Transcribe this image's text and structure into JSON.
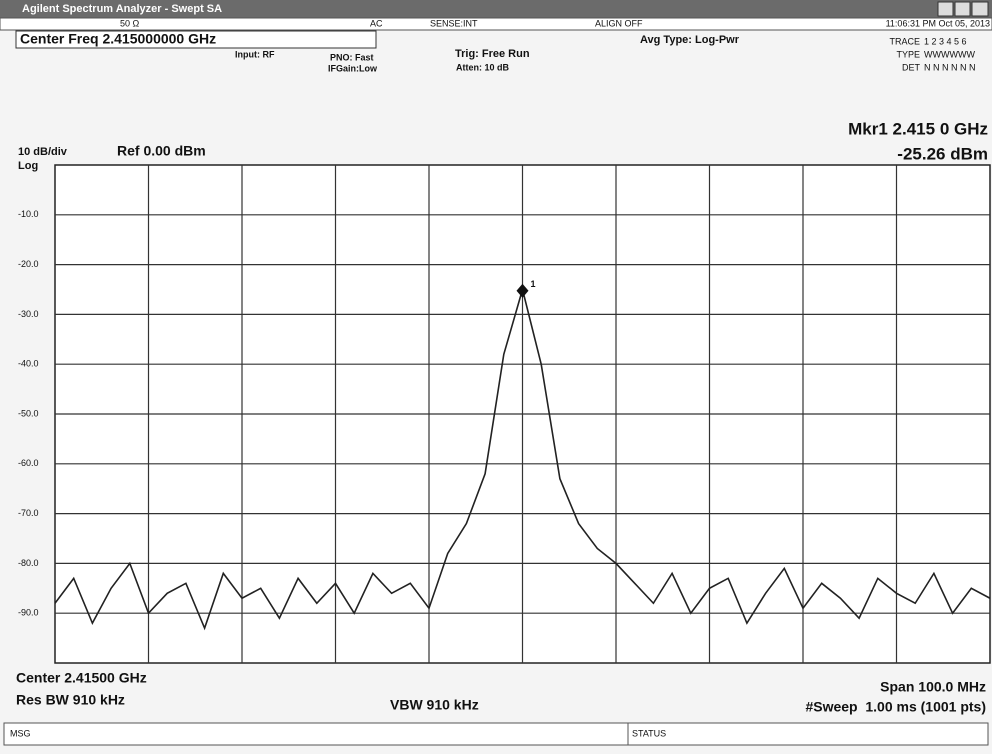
{
  "window": {
    "title": "Agilent Spectrum Analyzer - Swept SA"
  },
  "status_bar": {
    "impedance": "50 Ω",
    "coupling": "AC",
    "sense": "SENSE:INT",
    "align": "ALIGN OFF",
    "datetime": "11:06:31 PM Oct 05, 2013"
  },
  "settings": {
    "center_freq": "Center Freq 2.415000000 GHz",
    "input": "Input: RF",
    "pno": "PNO: Fast",
    "ifgain": "IFGain:Low",
    "trig": "Trig: Free Run",
    "atten": "Atten: 10 dB",
    "avg_type": "Avg Type: Log-Pwr"
  },
  "trace_panel": {
    "trace_label": "TRACE",
    "trace_numbers": "1 2 3 4 5 6",
    "type_label": "TYPE",
    "type_value": "WWWWWW",
    "det_label": "DET",
    "det_value": "N N N N N N"
  },
  "marker_readout": {
    "label": "Mkr1 2.415 0 GHz",
    "value": "-25.26 dBm"
  },
  "chart_data": {
    "type": "line",
    "scale": "10 dB/div",
    "ref": "Ref 0.00 dBm",
    "scale_type": "Log",
    "xlim": [
      2.365,
      2.465
    ],
    "ylim": [
      -100,
      0
    ],
    "yticks": [
      {
        "value": -10,
        "label": "-10.0"
      },
      {
        "value": -20,
        "label": "-20.0"
      },
      {
        "value": -30,
        "label": "-30.0"
      },
      {
        "value": -40,
        "label": "-40.0"
      },
      {
        "value": -50,
        "label": "-50.0"
      },
      {
        "value": -60,
        "label": "-60.0"
      },
      {
        "value": -70,
        "label": "-70.0"
      },
      {
        "value": -80,
        "label": "-80.0"
      },
      {
        "value": -90,
        "label": "-90.0"
      }
    ],
    "grid": true,
    "color": "#222222",
    "x": [
      2.365,
      2.367,
      2.369,
      2.371,
      2.373,
      2.375,
      2.377,
      2.379,
      2.381,
      2.383,
      2.385,
      2.387,
      2.389,
      2.391,
      2.393,
      2.395,
      2.397,
      2.399,
      2.401,
      2.403,
      2.405,
      2.407,
      2.409,
      2.411,
      2.413,
      2.415,
      2.417,
      2.419,
      2.421,
      2.423,
      2.425,
      2.427,
      2.429,
      2.431,
      2.433,
      2.435,
      2.437,
      2.439,
      2.441,
      2.443,
      2.445,
      2.447,
      2.449,
      2.451,
      2.453,
      2.455,
      2.457,
      2.459,
      2.461,
      2.463,
      2.465
    ],
    "values": [
      -88,
      -83,
      -92,
      -85,
      -80,
      -90,
      -86,
      -84,
      -93,
      -82,
      -87,
      -85,
      -91,
      -83,
      -88,
      -84,
      -90,
      -82,
      -86,
      -84,
      -89,
      -78,
      -72,
      -62,
      -38,
      -25,
      -40,
      -63,
      -72,
      -77,
      -80,
      -84,
      -88,
      -82,
      -90,
      -85,
      -83,
      -92,
      -86,
      -81,
      -89,
      -84,
      -87,
      -91,
      -83,
      -86,
      -88,
      -82,
      -90,
      -85,
      -87
    ],
    "marker": {
      "label": "1",
      "x": 2.415,
      "y": -25.26
    }
  },
  "footer": {
    "center": "Center 2.41500 GHz",
    "res_bw": "Res BW 910 kHz",
    "vbw": "VBW 910 kHz",
    "span": "Span 100.0 MHz",
    "sweep": "#Sweep  1.00 ms (1001 pts)"
  },
  "bottom_bar": {
    "msg": "MSG",
    "status": "STATUS"
  }
}
